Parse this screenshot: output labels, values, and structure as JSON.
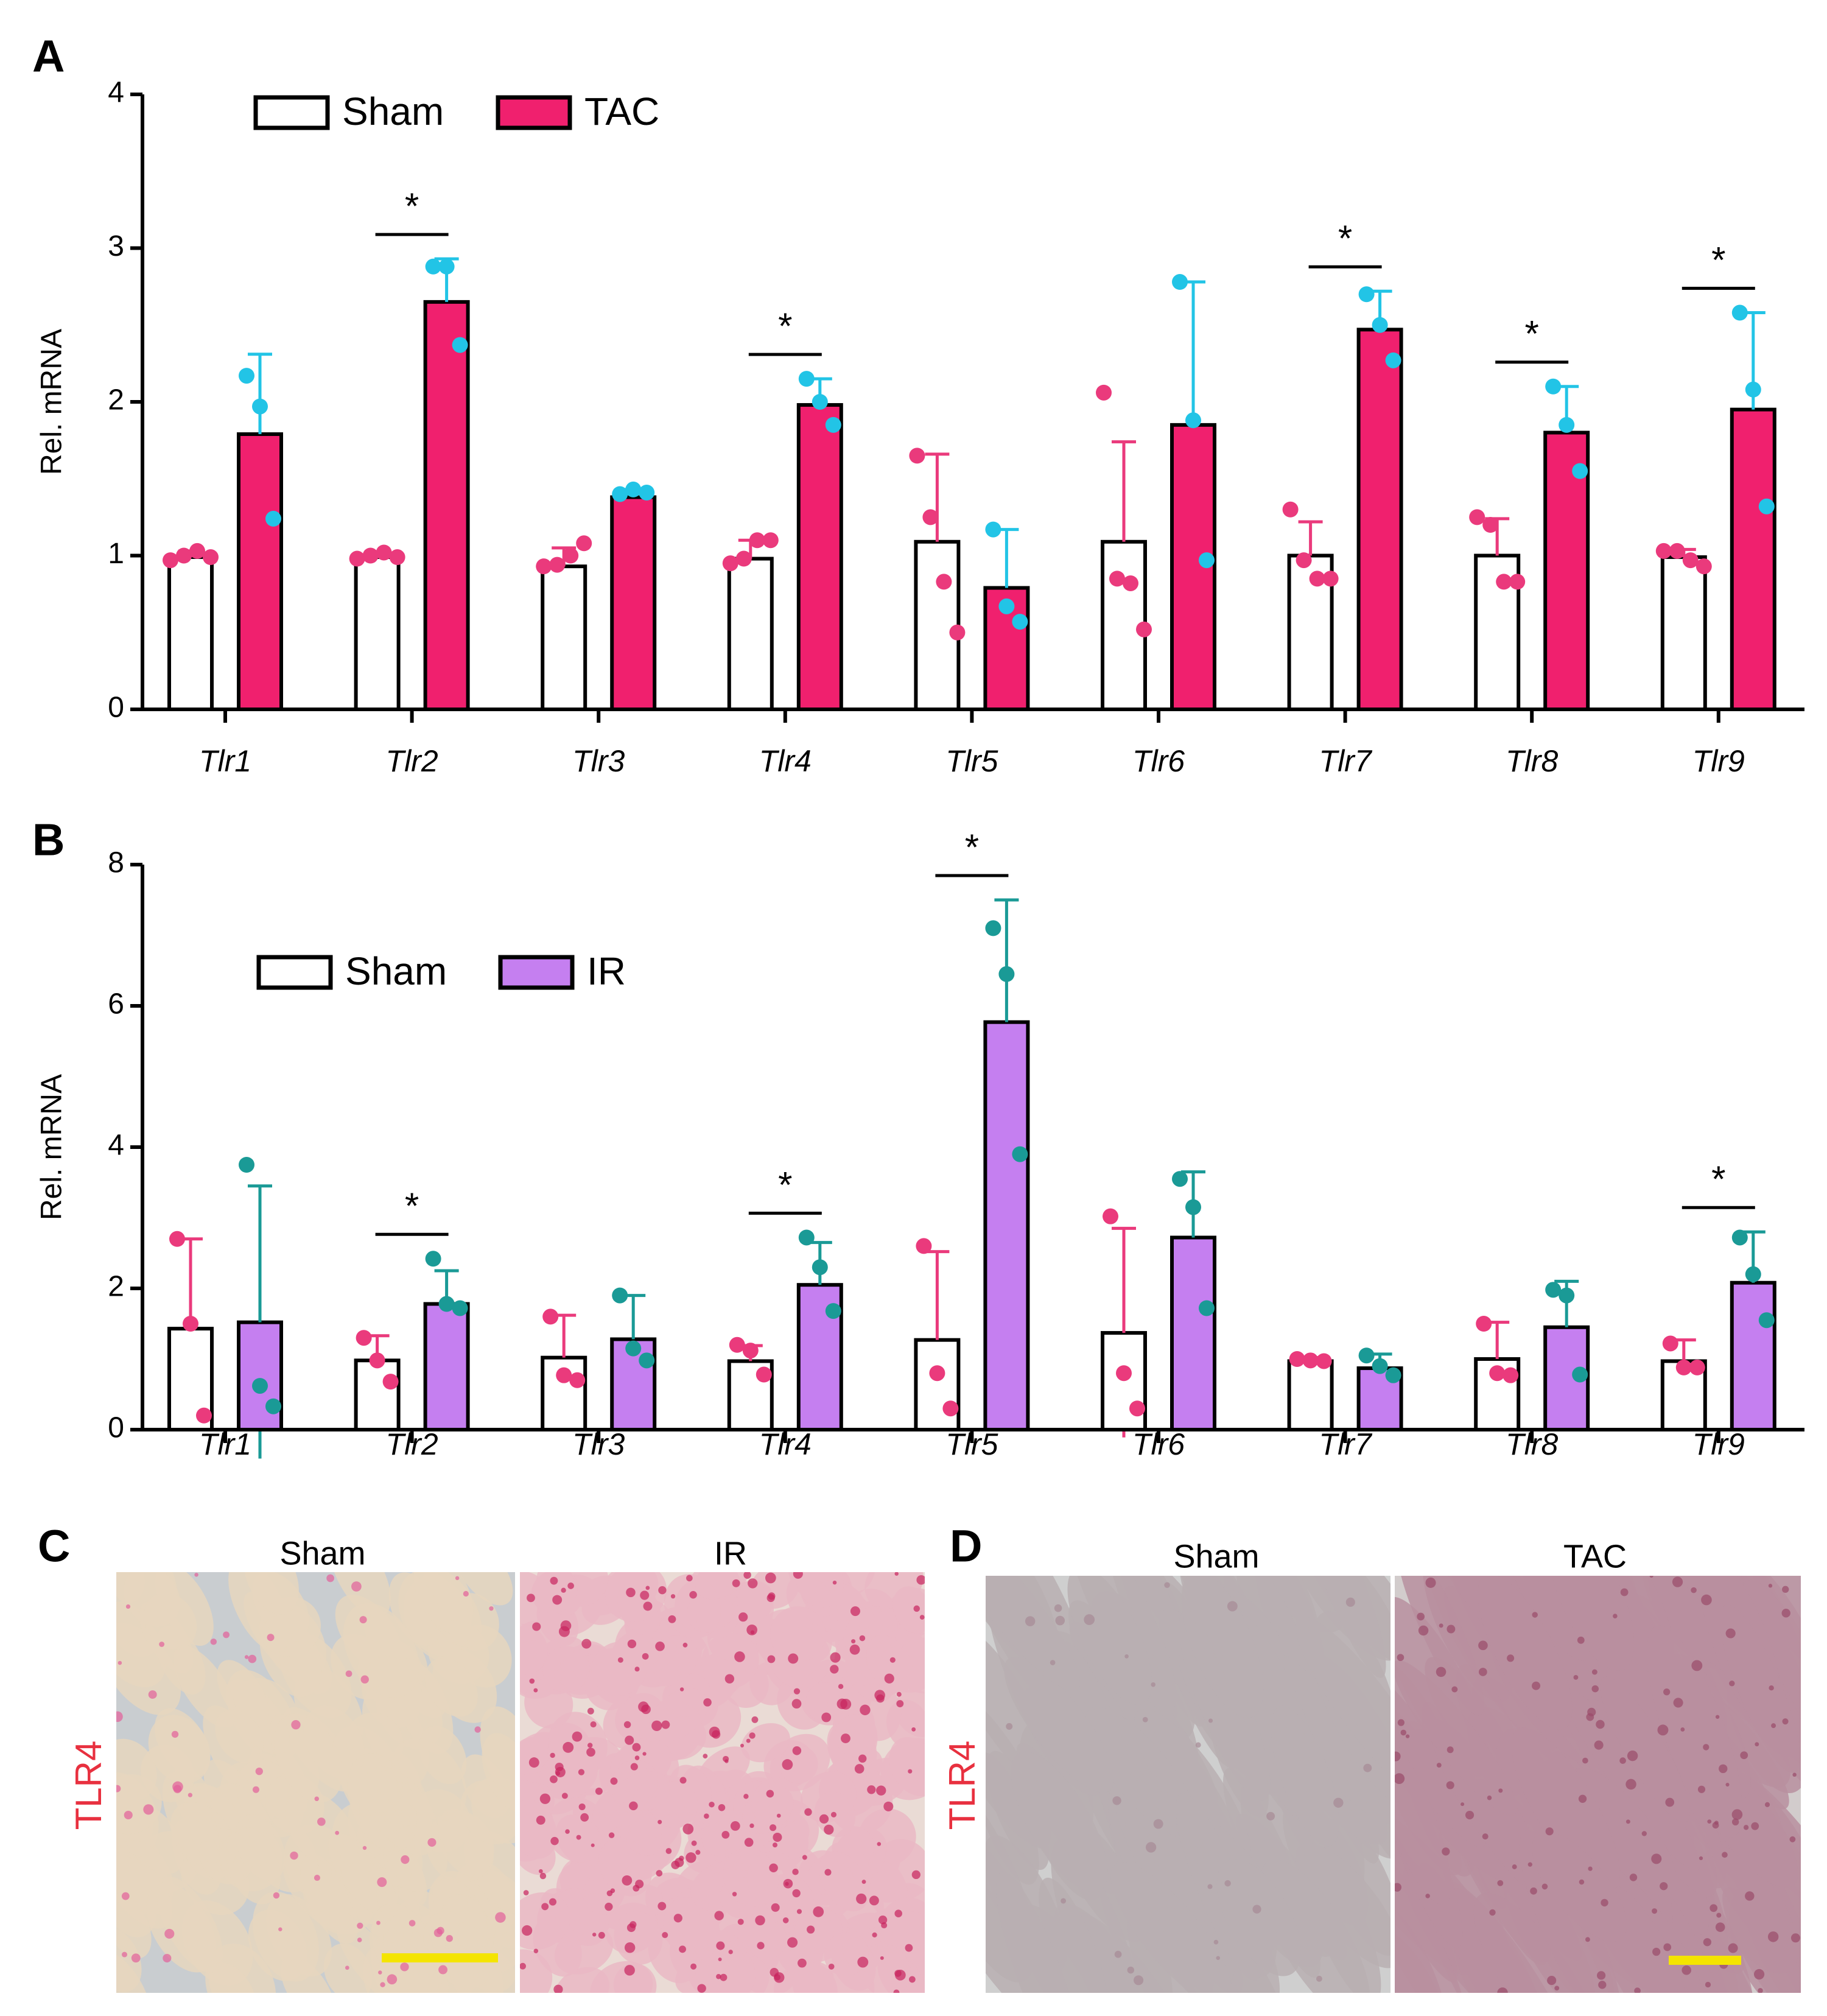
{
  "chart_data": [
    {
      "type": "bar",
      "label": "A",
      "ylabel": "Rel. mRNA",
      "categories": [
        "Tlr1",
        "Tlr2",
        "Tlr3",
        "Tlr4",
        "Tlr5",
        "Tlr6",
        "Tlr7",
        "Tlr8",
        "Tlr9"
      ],
      "ylim": [
        0,
        4
      ],
      "yticks": [
        0,
        1,
        2,
        3,
        4
      ],
      "series": [
        {
          "name": "Sham",
          "color": "#ffffff",
          "point_color": "#ea3a7c",
          "values": [
            0.99,
            0.99,
            0.93,
            0.98,
            1.09,
            1.09,
            1.0,
            1.0,
            0.99
          ],
          "errors": [
            0.04,
            0.03,
            0.12,
            0.12,
            0.57,
            0.65,
            0.22,
            0.24,
            0.05
          ],
          "points": [
            [
              0.97,
              1.0,
              1.03,
              0.99
            ],
            [
              0.98,
              1.0,
              1.02,
              0.99
            ],
            [
              0.93,
              0.94,
              1.0,
              1.08
            ],
            [
              0.95,
              0.98,
              1.1,
              1.1
            ],
            [
              1.65,
              1.25,
              0.83,
              0.5
            ],
            [
              2.06,
              0.85,
              0.82,
              0.52
            ],
            [
              1.3,
              0.97,
              0.85,
              0.85
            ],
            [
              1.25,
              1.2,
              0.83,
              0.83
            ],
            [
              1.03,
              1.03,
              0.97,
              0.93
            ]
          ]
        },
        {
          "name": "TAC",
          "color": "#f0206e",
          "point_color": "#22c4e6",
          "values": [
            1.79,
            2.65,
            1.38,
            1.98,
            0.79,
            1.85,
            2.47,
            1.8,
            1.95
          ],
          "errors": [
            0.52,
            0.28,
            0.05,
            0.17,
            0.38,
            0.93,
            0.25,
            0.3,
            0.63
          ],
          "points": [
            [
              2.17,
              1.97,
              1.24
            ],
            [
              2.88,
              2.88,
              2.37
            ],
            [
              1.4,
              1.43,
              1.41
            ],
            [
              2.15,
              2.0,
              1.85
            ],
            [
              1.17,
              0.67,
              0.57
            ],
            [
              2.78,
              1.88,
              0.97
            ],
            [
              2.7,
              2.5,
              2.27
            ],
            [
              2.1,
              1.85,
              1.55
            ],
            [
              2.58,
              2.08,
              1.32
            ]
          ]
        }
      ],
      "annotations": [
        {
          "text": "*",
          "category": "Tlr2"
        },
        {
          "text": "*",
          "category": "Tlr4"
        },
        {
          "text": "*",
          "category": "Tlr7"
        },
        {
          "text": "*",
          "category": "Tlr8"
        },
        {
          "text": "*",
          "category": "Tlr9"
        }
      ]
    },
    {
      "type": "bar",
      "label": "B",
      "ylabel": "Rel. mRNA",
      "categories": [
        "Tlr1",
        "Tlr2",
        "Tlr3",
        "Tlr4",
        "Tlr5",
        "Tlr6",
        "Tlr7",
        "Tlr8",
        "Tlr9"
      ],
      "ylim": [
        0,
        8
      ],
      "yticks": [
        0,
        2,
        4,
        6,
        8
      ],
      "series": [
        {
          "name": "Sham",
          "color": "#ffffff",
          "point_color": "#ea3a7c",
          "values": [
            1.43,
            0.98,
            1.02,
            0.97,
            1.27,
            1.37,
            0.97,
            1.0,
            0.97
          ],
          "errors": [
            1.27,
            0.35,
            0.6,
            0.22,
            1.25,
            1.48,
            0.05,
            0.52,
            0.3
          ],
          "points": [
            [
              2.7,
              1.5,
              0.2
            ],
            [
              1.3,
              0.98,
              0.68
            ],
            [
              1.6,
              0.77,
              0.7
            ],
            [
              1.2,
              1.12,
              0.78
            ],
            [
              2.6,
              0.8,
              0.3
            ],
            [
              3.02,
              0.8,
              0.3
            ],
            [
              1.0,
              0.98,
              0.97
            ],
            [
              1.5,
              0.8,
              0.77
            ],
            [
              1.22,
              0.88,
              0.88
            ]
          ]
        },
        {
          "name": "IR",
          "color": "#c57ff0",
          "point_color": "#1a9a96",
          "values": [
            1.52,
            1.78,
            1.28,
            2.05,
            5.77,
            2.72,
            0.87,
            1.45,
            2.08
          ],
          "errors": [
            1.93,
            0.47,
            0.62,
            0.6,
            1.73,
            0.93,
            0.2,
            0.65,
            0.72
          ],
          "points": [
            [
              3.75,
              0.62,
              0.33
            ],
            [
              2.42,
              1.78,
              1.72
            ],
            [
              1.9,
              1.15,
              0.98
            ],
            [
              2.72,
              2.3,
              1.68
            ],
            [
              7.1,
              6.45,
              3.9
            ],
            [
              3.55,
              3.15,
              1.72
            ],
            [
              1.05,
              0.9,
              0.77
            ],
            [
              1.98,
              1.9,
              0.78
            ],
            [
              2.72,
              2.2,
              1.55
            ]
          ]
        }
      ],
      "annotations": [
        {
          "text": "*",
          "category": "Tlr2"
        },
        {
          "text": "*",
          "category": "Tlr4"
        },
        {
          "text": "*",
          "category": "Tlr5"
        },
        {
          "text": "*",
          "category": "Tlr9"
        }
      ]
    }
  ],
  "panels": [
    {
      "label": "C",
      "images": [
        "Sham",
        "IR"
      ],
      "stain": "TLR4"
    },
    {
      "label": "D",
      "images": [
        "Sham",
        "TAC"
      ],
      "stain": "TLR4"
    }
  ]
}
